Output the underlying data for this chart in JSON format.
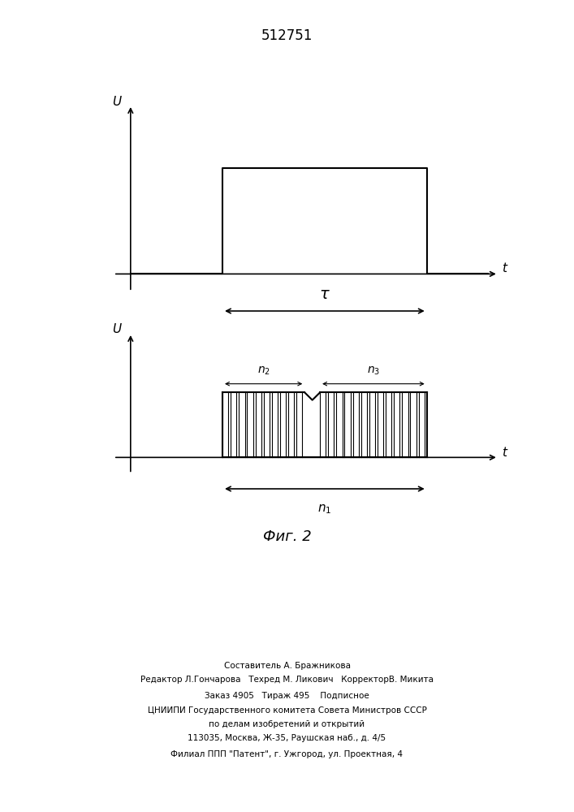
{
  "title": "512751",
  "fig_label": "Фиг. 2",
  "bg_color": "#ffffff",
  "line_color": "#000000",
  "fig_width": 7.07,
  "fig_height": 10.0,
  "dpi": 100,
  "footer_lines": [
    "Составитель А. Бражникова",
    "Редактор Л.Гончарова   Техред М. Ликович   КорректорВ. Микита",
    "Заказ 4905   Тираж 495    Подписное",
    "ЦНИИПИ Государственного комитета Совета Министров СССР",
    "по делам изобретений и открытий",
    "113035, Москва, Ж-35, Раушская наб., д. 4/5",
    "Филиал ППП \"Патент\", г. Ужгород, ул. Проектная, 4"
  ]
}
